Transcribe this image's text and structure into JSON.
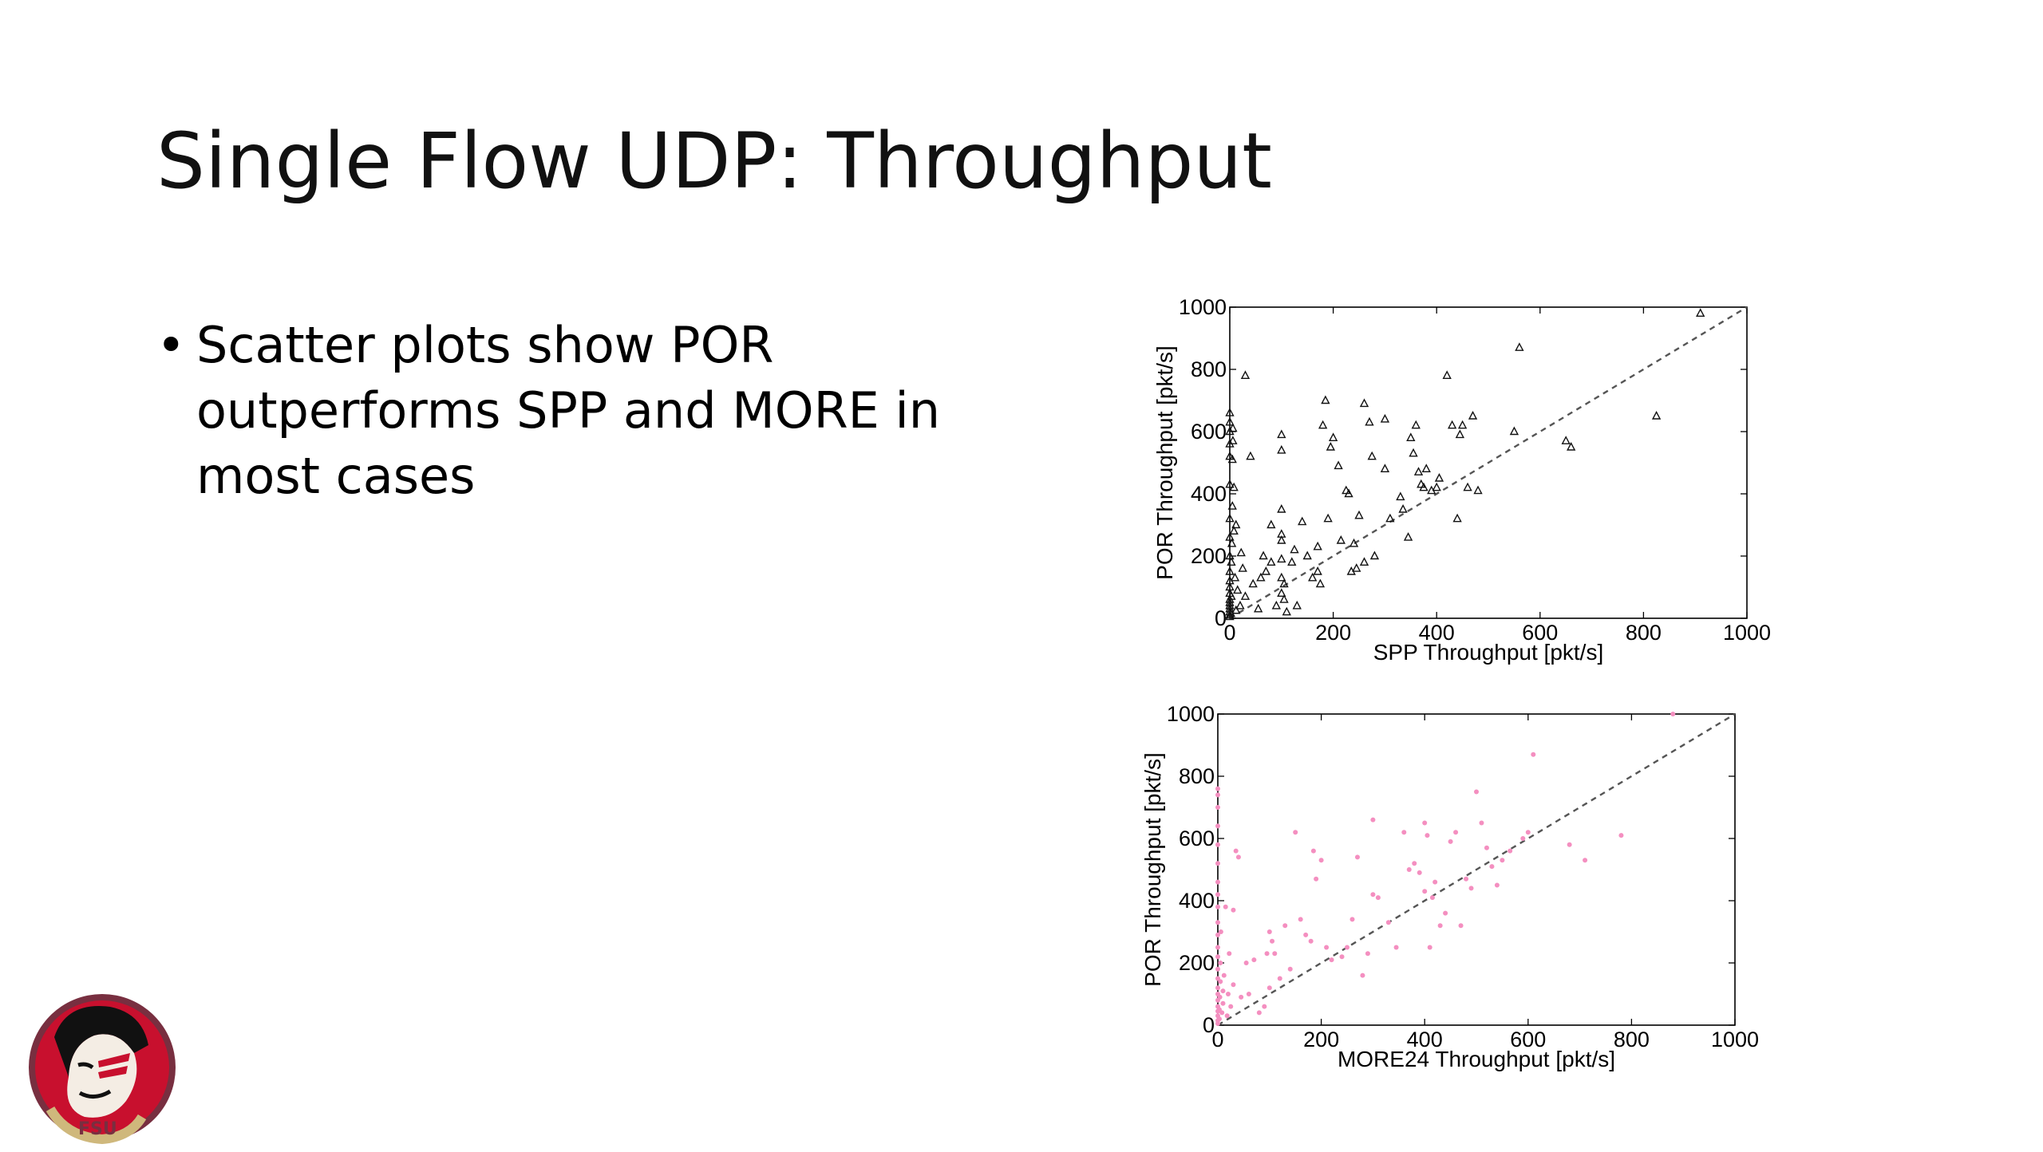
{
  "slide": {
    "title": "Single Flow UDP: Throughput",
    "bullets": [
      "Scatter plots show POR outperforms SPP and MORE in most cases"
    ]
  },
  "logo": {
    "icon": "seminole-head-logo",
    "text": "FSU"
  },
  "chart_data": [
    {
      "type": "scatter",
      "marker": "triangle",
      "color": "#111111",
      "xlabel": "SPP Throughput [pkt/s]",
      "ylabel": "POR Throughput [pkt/s]",
      "xlim": [
        0,
        1000
      ],
      "ylim": [
        0,
        1000
      ],
      "xticks": [
        "0",
        "200",
        "400",
        "600",
        "800",
        "1000"
      ],
      "yticks": [
        "0",
        "200",
        "400",
        "600",
        "800",
        "1000"
      ],
      "reference_line": "y = x (dashed)",
      "points": [
        [
          0,
          5
        ],
        [
          0,
          10
        ],
        [
          0,
          20
        ],
        [
          0,
          30
        ],
        [
          0,
          40
        ],
        [
          0,
          50
        ],
        [
          0,
          60
        ],
        [
          0,
          80
        ],
        [
          0,
          100
        ],
        [
          0,
          120
        ],
        [
          0,
          150
        ],
        [
          0,
          200
        ],
        [
          0,
          260
        ],
        [
          0,
          320
        ],
        [
          0,
          430
        ],
        [
          0,
          520
        ],
        [
          0,
          560
        ],
        [
          0,
          600
        ],
        [
          0,
          630
        ],
        [
          0,
          660
        ],
        [
          2,
          15
        ],
        [
          3,
          70
        ],
        [
          3,
          180
        ],
        [
          4,
          240
        ],
        [
          5,
          360
        ],
        [
          5,
          510
        ],
        [
          6,
          570
        ],
        [
          6,
          610
        ],
        [
          8,
          280
        ],
        [
          8,
          420
        ],
        [
          10,
          130
        ],
        [
          12,
          25
        ],
        [
          12,
          300
        ],
        [
          15,
          90
        ],
        [
          20,
          40
        ],
        [
          22,
          210
        ],
        [
          25,
          160
        ],
        [
          30,
          70
        ],
        [
          30,
          780
        ],
        [
          40,
          520
        ],
        [
          45,
          110
        ],
        [
          55,
          30
        ],
        [
          60,
          130
        ],
        [
          65,
          200
        ],
        [
          70,
          150
        ],
        [
          80,
          180
        ],
        [
          80,
          300
        ],
        [
          90,
          40
        ],
        [
          100,
          80
        ],
        [
          100,
          130
        ],
        [
          100,
          190
        ],
        [
          100,
          250
        ],
        [
          100,
          270
        ],
        [
          100,
          350
        ],
        [
          100,
          540
        ],
        [
          100,
          590
        ],
        [
          105,
          110
        ],
        [
          105,
          60
        ],
        [
          110,
          20
        ],
        [
          120,
          180
        ],
        [
          125,
          220
        ],
        [
          130,
          40
        ],
        [
          140,
          310
        ],
        [
          150,
          200
        ],
        [
          160,
          130
        ],
        [
          170,
          150
        ],
        [
          170,
          230
        ],
        [
          175,
          110
        ],
        [
          180,
          620
        ],
        [
          185,
          700
        ],
        [
          190,
          320
        ],
        [
          195,
          550
        ],
        [
          200,
          580
        ],
        [
          210,
          490
        ],
        [
          215,
          250
        ],
        [
          225,
          410
        ],
        [
          230,
          400
        ],
        [
          235,
          150
        ],
        [
          240,
          240
        ],
        [
          245,
          160
        ],
        [
          250,
          330
        ],
        [
          260,
          690
        ],
        [
          260,
          180
        ],
        [
          270,
          630
        ],
        [
          275,
          520
        ],
        [
          280,
          200
        ],
        [
          300,
          480
        ],
        [
          300,
          640
        ],
        [
          310,
          320
        ],
        [
          330,
          390
        ],
        [
          335,
          350
        ],
        [
          345,
          260
        ],
        [
          350,
          580
        ],
        [
          355,
          530
        ],
        [
          360,
          620
        ],
        [
          365,
          470
        ],
        [
          370,
          430
        ],
        [
          375,
          420
        ],
        [
          380,
          480
        ],
        [
          390,
          410
        ],
        [
          400,
          420
        ],
        [
          405,
          450
        ],
        [
          420,
          780
        ],
        [
          430,
          620
        ],
        [
          440,
          320
        ],
        [
          445,
          590
        ],
        [
          450,
          620
        ],
        [
          460,
          420
        ],
        [
          470,
          650
        ],
        [
          480,
          410
        ],
        [
          550,
          600
        ],
        [
          560,
          870
        ],
        [
          650,
          570
        ],
        [
          660,
          550
        ],
        [
          825,
          650
        ],
        [
          910,
          980
        ]
      ]
    },
    {
      "type": "scatter",
      "marker": "dot",
      "color": "#f48fc0",
      "xlabel": "MORE24 Throughput [pkt/s]",
      "ylabel": "POR Throughput [pkt/s]",
      "xlim": [
        0,
        1000
      ],
      "ylim": [
        0,
        1000
      ],
      "xticks": [
        "0",
        "200",
        "400",
        "600",
        "800",
        "1000"
      ],
      "yticks": [
        "0",
        "200",
        "400",
        "600",
        "800",
        "1000"
      ],
      "reference_line": "y = x (dashed)",
      "points": [
        [
          0,
          5
        ],
        [
          0,
          15
        ],
        [
          0,
          30
        ],
        [
          0,
          45
        ],
        [
          0,
          60
        ],
        [
          0,
          80
        ],
        [
          0,
          100
        ],
        [
          0,
          120
        ],
        [
          0,
          150
        ],
        [
          0,
          180
        ],
        [
          0,
          220
        ],
        [
          0,
          250
        ],
        [
          0,
          290
        ],
        [
          0,
          330
        ],
        [
          0,
          380
        ],
        [
          0,
          420
        ],
        [
          0,
          460
        ],
        [
          0,
          520
        ],
        [
          0,
          580
        ],
        [
          0,
          640
        ],
        [
          0,
          700
        ],
        [
          0,
          740
        ],
        [
          0,
          760
        ],
        [
          3,
          20
        ],
        [
          3,
          50
        ],
        [
          4,
          90
        ],
        [
          5,
          140
        ],
        [
          5,
          200
        ],
        [
          6,
          300
        ],
        [
          8,
          40
        ],
        [
          10,
          70
        ],
        [
          10,
          110
        ],
        [
          12,
          160
        ],
        [
          15,
          380
        ],
        [
          18,
          30
        ],
        [
          20,
          100
        ],
        [
          22,
          230
        ],
        [
          25,
          60
        ],
        [
          30,
          130
        ],
        [
          30,
          370
        ],
        [
          35,
          560
        ],
        [
          40,
          540
        ],
        [
          45,
          90
        ],
        [
          55,
          200
        ],
        [
          60,
          100
        ],
        [
          70,
          210
        ],
        [
          80,
          40
        ],
        [
          90,
          60
        ],
        [
          95,
          230
        ],
        [
          100,
          300
        ],
        [
          100,
          120
        ],
        [
          105,
          270
        ],
        [
          110,
          230
        ],
        [
          120,
          150
        ],
        [
          130,
          320
        ],
        [
          140,
          180
        ],
        [
          150,
          620
        ],
        [
          160,
          340
        ],
        [
          170,
          290
        ],
        [
          180,
          270
        ],
        [
          185,
          560
        ],
        [
          190,
          470
        ],
        [
          200,
          530
        ],
        [
          210,
          250
        ],
        [
          220,
          210
        ],
        [
          240,
          220
        ],
        [
          250,
          250
        ],
        [
          260,
          340
        ],
        [
          270,
          540
        ],
        [
          280,
          160
        ],
        [
          290,
          230
        ],
        [
          300,
          420
        ],
        [
          300,
          660
        ],
        [
          310,
          410
        ],
        [
          330,
          330
        ],
        [
          345,
          250
        ],
        [
          360,
          620
        ],
        [
          370,
          500
        ],
        [
          380,
          520
        ],
        [
          390,
          490
        ],
        [
          400,
          430
        ],
        [
          400,
          650
        ],
        [
          405,
          610
        ],
        [
          410,
          250
        ],
        [
          415,
          410
        ],
        [
          420,
          460
        ],
        [
          430,
          320
        ],
        [
          440,
          360
        ],
        [
          450,
          590
        ],
        [
          460,
          620
        ],
        [
          470,
          320
        ],
        [
          480,
          470
        ],
        [
          490,
          440
        ],
        [
          500,
          750
        ],
        [
          510,
          650
        ],
        [
          520,
          570
        ],
        [
          530,
          510
        ],
        [
          540,
          450
        ],
        [
          550,
          530
        ],
        [
          565,
          560
        ],
        [
          590,
          600
        ],
        [
          600,
          620
        ],
        [
          610,
          870
        ],
        [
          680,
          580
        ],
        [
          710,
          530
        ],
        [
          780,
          610
        ],
        [
          880,
          1000
        ]
      ]
    }
  ]
}
